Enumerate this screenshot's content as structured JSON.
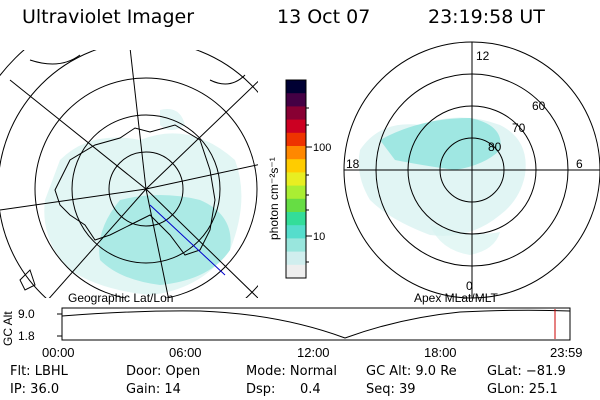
{
  "header": {
    "title": "Ultraviolet Imager",
    "date": "13 Oct 07",
    "time": "23:19:58 UT"
  },
  "left_map": {
    "label": "Geographic Lat/Lon"
  },
  "right_map": {
    "label": "Apex MLat/MLT",
    "mlt_labels": [
      "12",
      "18",
      "6",
      "0"
    ],
    "mlat_labels": [
      "60",
      "70",
      "80"
    ]
  },
  "colorbar": {
    "label": "photon cm⁻²s⁻¹",
    "ticks": [
      "100",
      "10"
    ],
    "colors": [
      "#000033",
      "#440044",
      "#880033",
      "#cc0022",
      "#ee3300",
      "#ff8800",
      "#ffcc00",
      "#e8ee22",
      "#aaee33",
      "#66dd44",
      "#33dd99",
      "#55ddcc",
      "#99e6dd",
      "#d0eeee",
      "#eeeeee"
    ]
  },
  "alt_plot": {
    "ylabel": "GC Alt",
    "y_ticks": [
      "9.0",
      "1.8"
    ],
    "x_ticks": [
      "00:00",
      "06:00",
      "12:00",
      "18:00",
      "23:59"
    ],
    "marker_color": "#cc0000"
  },
  "info": {
    "filter": "Flt: LBHL",
    "ip": "IP: 36.0",
    "door": "Door: Open",
    "gain": "Gain: 14",
    "mode": "Mode: Normal",
    "dsp_label": "Dsp:",
    "dsp_value": "0.4",
    "gc_alt": "GC Alt: 9.0 Re",
    "seq": "Seq: 39",
    "glat": "GLat: −81.9",
    "glon": "GLon:  25.1"
  }
}
